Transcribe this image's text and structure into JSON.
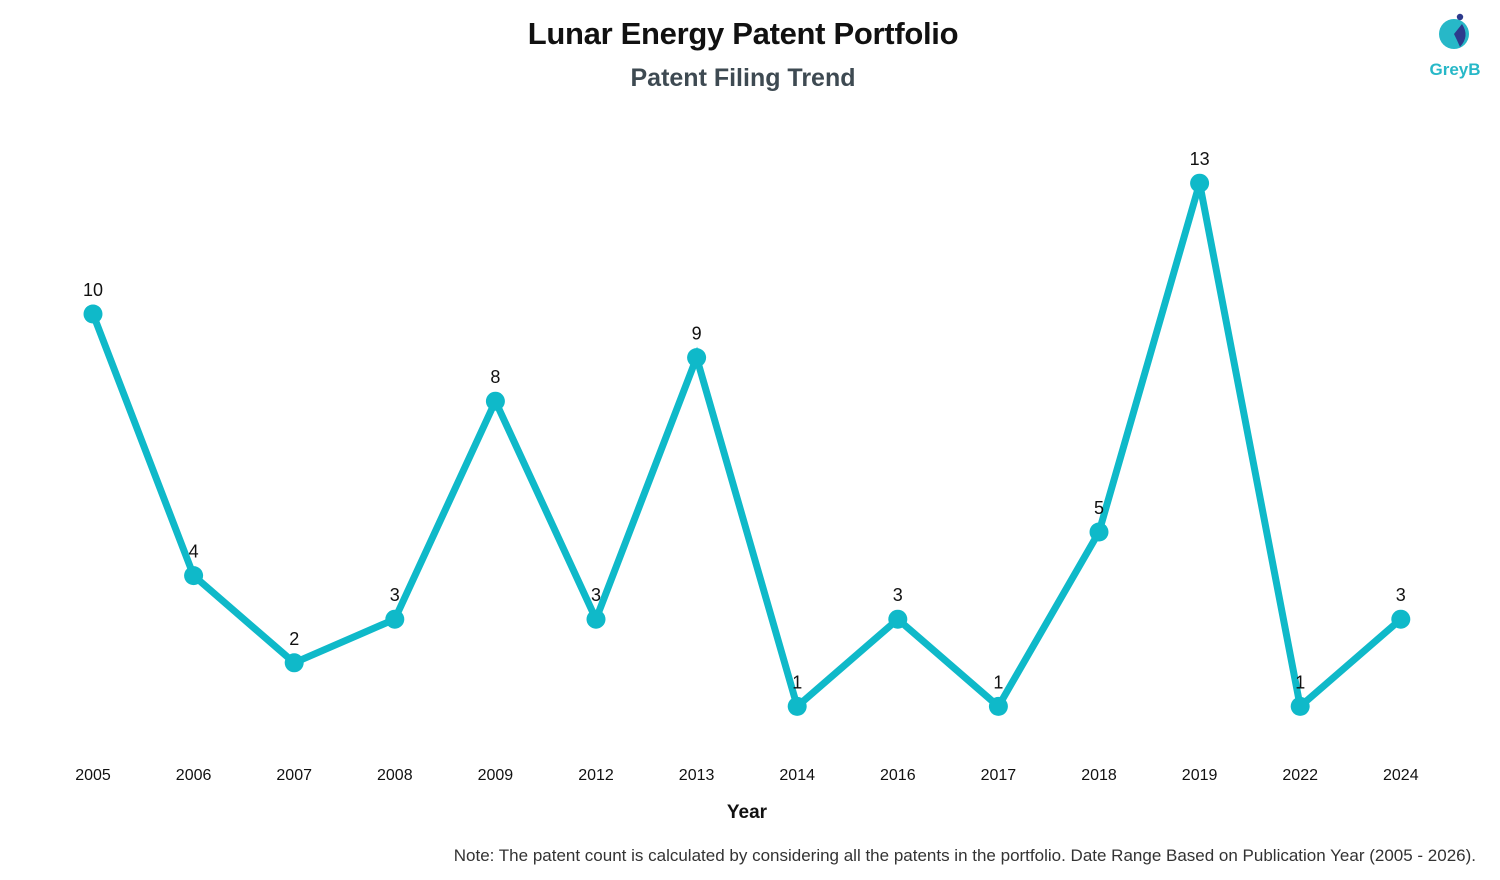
{
  "header": {
    "title": "Lunar Energy Patent Portfolio",
    "subtitle": "Patent Filing Trend"
  },
  "logo": {
    "text": "GreyB",
    "icon": "greyb-logo-icon",
    "colors": {
      "teal": "#27b8c8",
      "navy": "#2d3a8c"
    }
  },
  "footer": {
    "note": "Note: The patent count is calculated by considering all the patents in the portfolio. Date Range Based on Publication Year (2005 - 2026)."
  },
  "chart_data": {
    "type": "line",
    "title": "Lunar Energy Patent Portfolio",
    "subtitle": "Patent Filing Trend",
    "xlabel": "Year",
    "ylabel": "",
    "categories": [
      "2005",
      "2006",
      "2007",
      "2008",
      "2009",
      "2012",
      "2013",
      "2014",
      "2016",
      "2017",
      "2018",
      "2019",
      "2022",
      "2024"
    ],
    "series": [
      {
        "values": [
          10,
          4,
          2,
          3,
          8,
          3,
          9,
          1,
          3,
          1,
          5,
          13,
          1,
          3
        ],
        "color": "#0fb9c9"
      }
    ],
    "data_labels": true,
    "grid": false,
    "y_axis_visible": false,
    "legend": "none"
  }
}
